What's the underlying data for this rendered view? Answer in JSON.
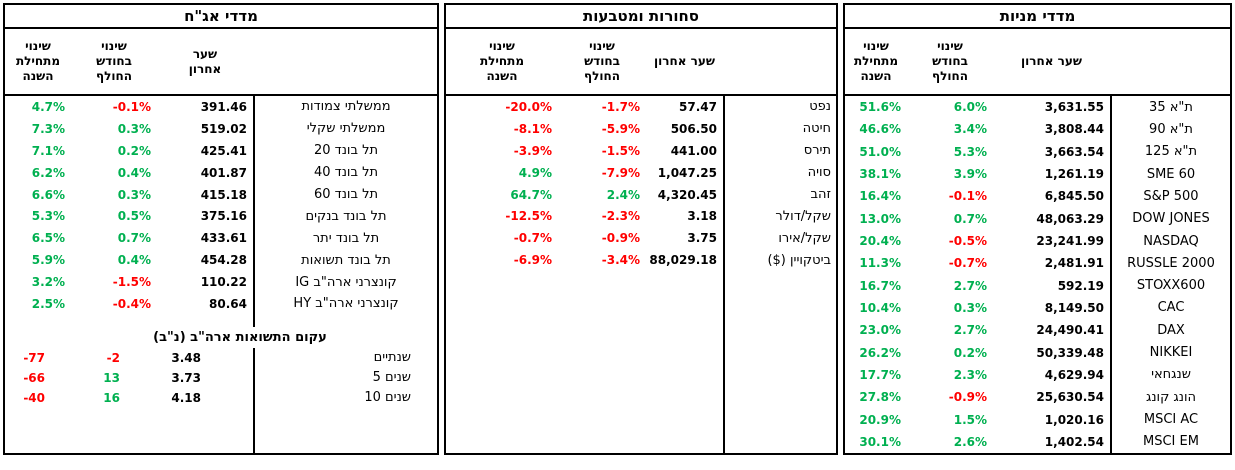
{
  "colors": {
    "positive": "#00B050",
    "negative": "#FF0000",
    "text": "#000000",
    "border": "#000000",
    "background": "#FFFFFF"
  },
  "sections": [
    {
      "id": "bond-indices",
      "title": "מדדי אג\"ח",
      "headers": [
        "שינוי\nמתחילת\nהשנה",
        "שינוי\nבחודש\nהחולף",
        "שער\nאחרון",
        ""
      ],
      "rows": [
        {
          "name": "ממשלתי צמודות",
          "ytd": "4.7%",
          "month": "-0.1%",
          "last": "391.46"
        },
        {
          "name": "ממשלתי שקלי",
          "ytd": "7.3%",
          "month": "0.3%",
          "last": "519.02"
        },
        {
          "name": "תל בונד 20",
          "ytd": "7.1%",
          "month": "0.2%",
          "last": "425.41"
        },
        {
          "name": "תל בונד 40",
          "ytd": "6.2%",
          "month": "0.4%",
          "last": "401.87"
        },
        {
          "name": "תל בונד 60",
          "ytd": "6.6%",
          "month": "0.3%",
          "last": "415.18"
        },
        {
          "name": "תל בונד בנקים",
          "ytd": "5.3%",
          "month": "0.5%",
          "last": "375.16"
        },
        {
          "name": "תל בונד יתר",
          "ytd": "6.5%",
          "month": "0.7%",
          "last": "433.61"
        },
        {
          "name": "תל בונד תשואות",
          "ytd": "5.9%",
          "month": "0.4%",
          "last": "454.28"
        },
        {
          "name": "קונצרני ארה\"ב IG",
          "ytd": "3.2%",
          "month": "-1.5%",
          "last": "110.22"
        },
        {
          "name": "קונצרני ארה\"ב HY",
          "ytd": "2.5%",
          "month": "-0.4%",
          "last": "80.64"
        }
      ],
      "subsection": {
        "title": "עקום התשואות ארה\"ב (נ\"ב)",
        "rows": [
          {
            "name": "שנתיים",
            "ytd": "-77",
            "month": "-2",
            "last": "3.48"
          },
          {
            "name": "5 שנים",
            "ytd": "-66",
            "month": "13",
            "last": "3.73"
          },
          {
            "name": "10 שנים",
            "ytd": "-40",
            "month": "16",
            "last": "4.18"
          }
        ]
      }
    },
    {
      "id": "commodities-currencies",
      "title": "סחורות ומטבעות",
      "headers": [
        "שינוי\nמתחילת\nהשנה",
        "שינוי\nבחודש\nהחולף",
        "שער אחרון",
        ""
      ],
      "rows": [
        {
          "name": "נפט",
          "ytd": "-20.0%",
          "month": "-1.7%",
          "last": "57.47"
        },
        {
          "name": "חיטה",
          "ytd": "-8.1%",
          "month": "-5.9%",
          "last": "506.50"
        },
        {
          "name": "תירס",
          "ytd": "-3.9%",
          "month": "-1.5%",
          "last": "441.00"
        },
        {
          "name": "סויה",
          "ytd": "4.9%",
          "month": "-7.9%",
          "last": "1,047.25"
        },
        {
          "name": "זהב",
          "ytd": "64.7%",
          "month": "2.4%",
          "last": "4,320.45"
        },
        {
          "name": "שקל/דולר",
          "ytd": "-12.5%",
          "month": "-2.3%",
          "last": "3.18"
        },
        {
          "name": "שקל/אירו",
          "ytd": "-0.7%",
          "month": "-0.9%",
          "last": "3.75"
        },
        {
          "name": "ביטקויין ($)",
          "ytd": "-6.9%",
          "month": "-3.4%",
          "last": "88,029.18"
        }
      ]
    },
    {
      "id": "stock-indices",
      "title": "מדדי מניות",
      "headers": [
        "שינוי\nמתחילת\nהשנה",
        "שינוי\nבחודש\nהחולף",
        "שער אחרון",
        ""
      ],
      "rows": [
        {
          "name": "ת\"א 35",
          "ytd": "51.6%",
          "month": "6.0%",
          "last": "3,631.55"
        },
        {
          "name": "ת\"א 90",
          "ytd": "46.6%",
          "month": "3.4%",
          "last": "3,808.44"
        },
        {
          "name": "ת\"א 125",
          "ytd": "51.0%",
          "month": "5.3%",
          "last": "3,663.54"
        },
        {
          "name": "SME 60",
          "ytd": "38.1%",
          "month": "3.9%",
          "last": "1,261.19"
        },
        {
          "name": "S&P 500",
          "ytd": "16.4%",
          "month": "-0.1%",
          "last": "6,845.50"
        },
        {
          "name": "DOW JONES",
          "ytd": "13.0%",
          "month": "0.7%",
          "last": "48,063.29"
        },
        {
          "name": "NASDAQ",
          "ytd": "20.4%",
          "month": "-0.5%",
          "last": "23,241.99"
        },
        {
          "name": "RUSSLE 2000",
          "ytd": "11.3%",
          "month": "-0.7%",
          "last": "2,481.91"
        },
        {
          "name": "STOXX600",
          "ytd": "16.7%",
          "month": "2.7%",
          "last": "592.19"
        },
        {
          "name": "CAC",
          "ytd": "10.4%",
          "month": "0.3%",
          "last": "8,149.50"
        },
        {
          "name": "DAX",
          "ytd": "23.0%",
          "month": "2.7%",
          "last": "24,490.41"
        },
        {
          "name": "NIKKEI",
          "ytd": "26.2%",
          "month": "0.2%",
          "last": "50,339.48"
        },
        {
          "name": "שנגחאי",
          "ytd": "17.7%",
          "month": "2.3%",
          "last": "4,629.94"
        },
        {
          "name": "הונג קונג",
          "ytd": "27.8%",
          "month": "-0.9%",
          "last": "25,630.54"
        },
        {
          "name": "MSCI AC",
          "ytd": "20.9%",
          "month": "1.5%",
          "last": "1,020.16"
        },
        {
          "name": "MSCI EM",
          "ytd": "30.1%",
          "month": "2.6%",
          "last": "1,402.54"
        }
      ]
    }
  ]
}
